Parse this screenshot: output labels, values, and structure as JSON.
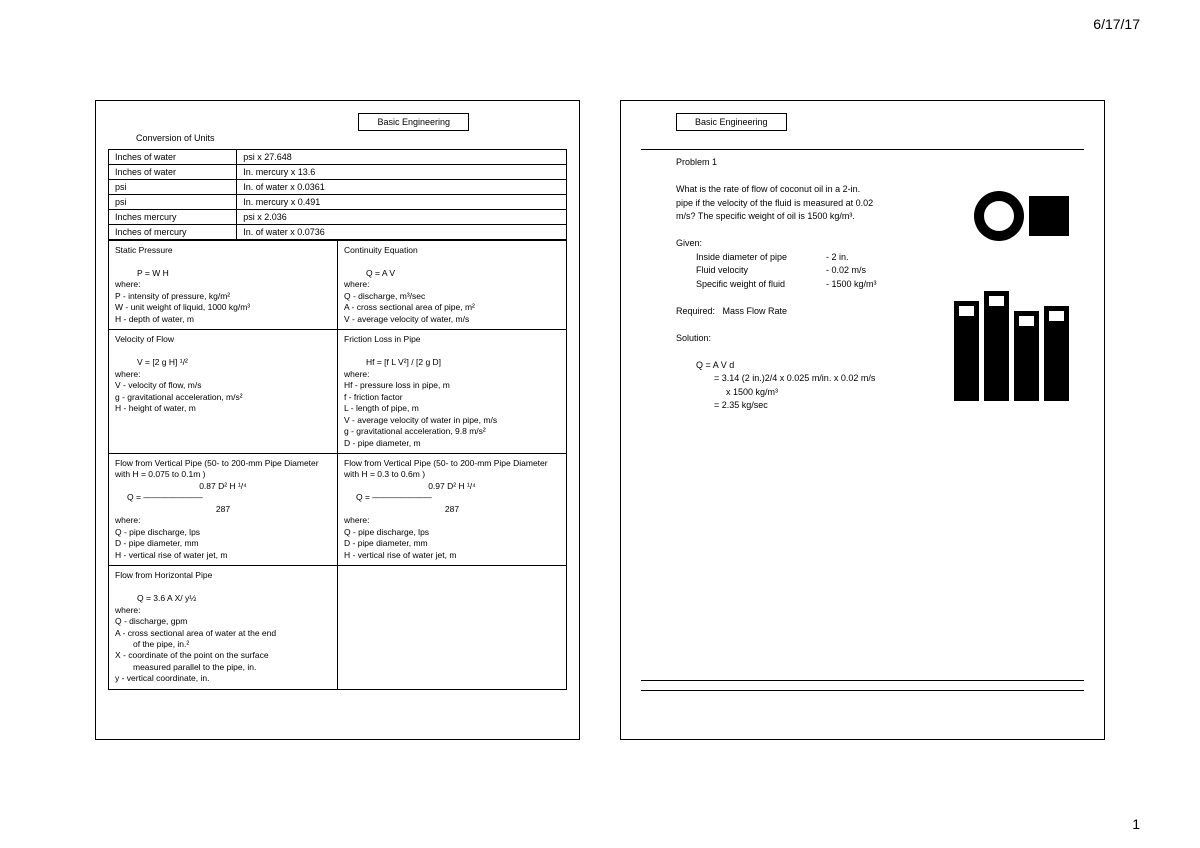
{
  "meta": {
    "date": "6/17/17",
    "page_num": "1"
  },
  "header_title": "Basic Engineering",
  "slide1": {
    "section_title": "Conversion of Units",
    "conversions": [
      {
        "from": "Inches of water",
        "to": "psi x 27.648"
      },
      {
        "from": "Inches of water",
        "to": "In. mercury x 13.6"
      },
      {
        "from": "psi",
        "to": "In. of water x 0.0361"
      },
      {
        "from": "psi",
        "to": "In. mercury x 0.491"
      },
      {
        "from": "Inches mercury",
        "to": "psi x 2.036"
      },
      {
        "from": "Inches of mercury",
        "to": "In. of water x 0.0736"
      }
    ],
    "formulas": {
      "r0c0_title": "Static Pressure",
      "r0c0_eq": "P  =  W H",
      "r0c0_where": "where:",
      "r0c0_l1": "P  - intensity of pressure, kg/m²",
      "r0c0_l2": "W - unit weight of liquid, 1000 kg/m³",
      "r0c0_l3": "H  - depth of water, m",
      "r0c1_title": "Continuity  Equation",
      "r0c1_eq": "Q  = A  V",
      "r0c1_where": "where:",
      "r0c1_l1": "Q  -  discharge,  m³/sec",
      "r0c1_l2": "A  - cross sectional  area of pipe, m²",
      "r0c1_l3": "V  - average velocity  of water, m/s",
      "r1c0_title": "Velocity  of Flow",
      "r1c0_eq": "V  =  [2 g H] ¹/²",
      "r1c0_where": "where:",
      "r1c0_l1": "V - velocity of flow, m/s",
      "r1c0_l2": "g  - gravitational  acceleration,  m/s²",
      "r1c0_l3": "H  - height of water, m",
      "r1c1_title": "Friction  Loss in Pipe",
      "r1c1_eq": "Hf  =  [f L V²] / [2 g D]",
      "r1c1_where": "where:",
      "r1c1_l1": "Hf -  pressure loss in pipe, m",
      "r1c1_l2": "f   - friction  factor",
      "r1c1_l3": "L  - length of pipe, m",
      "r1c1_l4": "V - average velocity  of water in pipe, m/s",
      "r1c1_l5": "g  - gravitational  acceleration,   9.8 m/s²",
      "r1c1_l6": "D  - pipe diameter,  m",
      "r2c0_title": "Flow from Vertical  Pipe (50- to 200-mm Pipe Diameter  with  H = 0.075 to 0.1m )",
      "r2c0_num": "0.87 D²  H ¹/⁴",
      "r2c0_q": "Q  =  ———————",
      "r2c0_den": "287",
      "r2c0_where": "where:",
      "r2c0_l1": "Q  - pipe discharge,  lps",
      "r2c0_l2": "D  - pipe diameter, mm",
      "r2c0_l3": "H  - vertical rise of water jet, m",
      "r2c1_title": "Flow from  Vertical  Pipe (50- to 200-mm Pipe Diameter  with  H = 0.3 to 0.6m )",
      "r2c1_num": "0.97 D²  H ¹/⁴",
      "r2c1_q": "Q  =  ———————",
      "r2c1_den": "287",
      "r2c1_where": "where:",
      "r2c1_l1": "Q  - pipe discharge,   lps",
      "r2c1_l2": "D  - pipe diameter, mm",
      "r2c1_l3": "H  - vertical  rise of water jet, m",
      "r3c0_title": "Flow from Horizontal  Pipe",
      "r3c0_eq": "Q =  3.6  A X/ y½",
      "r3c0_where": "where:",
      "r3c0_l1": "Q  -  discharge,  gpm",
      "r3c0_l2": "A -  cross sectional  area of water at the end",
      "r3c0_l2b": "of the pipe,  in.²",
      "r3c0_l3": "X -  coordinate  of the point on the surface",
      "r3c0_l3b": "measured parallel to the pipe,  in.",
      "r3c0_l4": "y -  vertical coordinate,  in."
    }
  },
  "slide2": {
    "problem_label": "Problem  1",
    "problem_text_1": "What is the rate of flow of coconut  oil in a 2-in.",
    "problem_text_2": "pipe if the velocity  of the fluid is measured at 0.02",
    "problem_text_3": "m/s? The specific weight of oil  is 1500 kg/m³.",
    "given_label": "Given:",
    "given_1a": "Inside diameter of pipe",
    "given_1b": "- 2 in.",
    "given_2a": "Fluid velocity",
    "given_2b": "- 0.02 m/s",
    "given_3a": "Specific  weight of fluid",
    "given_3b": "- 1500  kg/m³",
    "required_label": "Required:",
    "required_val": "Mass Flow Rate",
    "solution_label": "Solution:",
    "sol_1": "Q   = A V d",
    "sol_2": "= 3.14 (2 in.)2/4 x 0.025 m/in. x 0.02 m/s",
    "sol_3": "x 1500 kg/m³",
    "sol_4": "= 2.35 kg/sec"
  },
  "colors": {
    "text": "#000000",
    "bg": "#ffffff",
    "border": "#000000"
  }
}
